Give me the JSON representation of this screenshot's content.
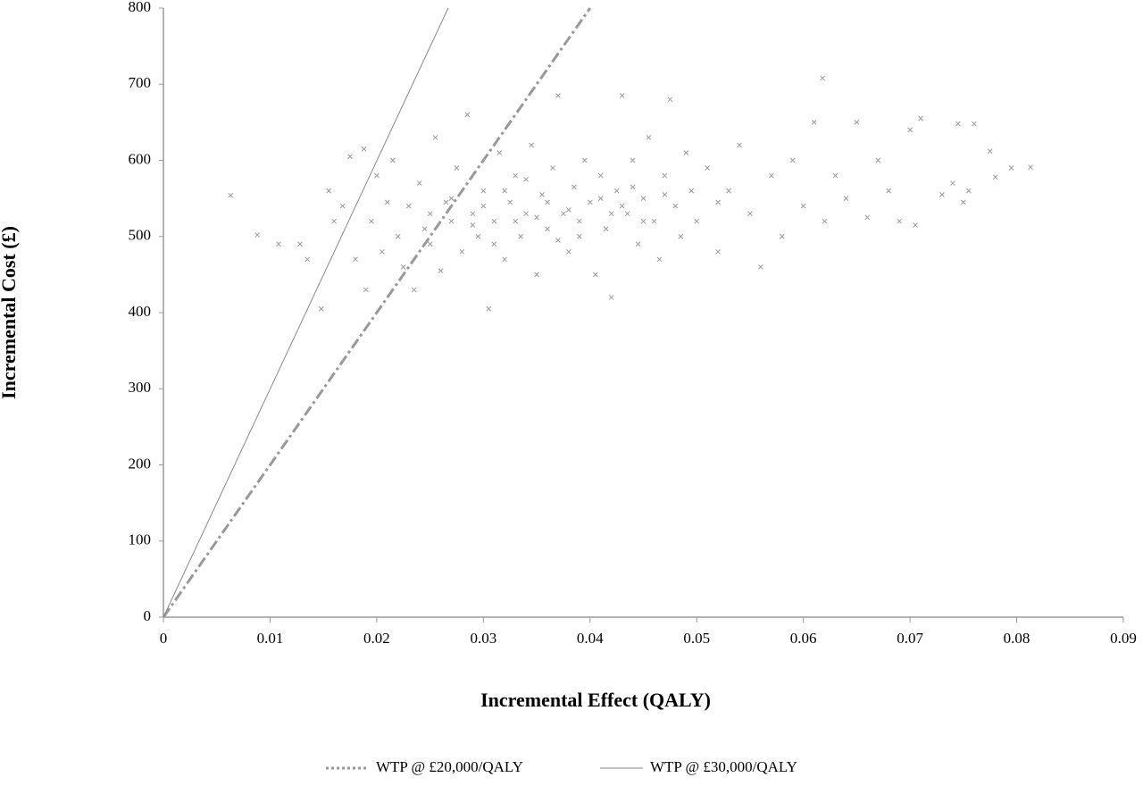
{
  "chart_data": {
    "type": "scatter",
    "xlabel": "Incremental Effect (QALY)",
    "ylabel": "Incremental Cost (£)",
    "xlim": [
      0,
      0.09
    ],
    "ylim": [
      0,
      800
    ],
    "xticks": [
      0,
      0.01,
      0.02,
      0.03,
      0.04,
      0.05,
      0.06,
      0.07,
      0.08,
      0.09
    ],
    "yticks": [
      0,
      100,
      200,
      300,
      400,
      500,
      600,
      700,
      800
    ],
    "legend": "bottom",
    "series": [
      {
        "type": "scatter",
        "color": "#999999",
        "x": [
          0.0063,
          0.0088,
          0.0108,
          0.0128,
          0.0135,
          0.0148,
          0.0155,
          0.016,
          0.0168,
          0.0175,
          0.018,
          0.0188,
          0.019,
          0.0195,
          0.02,
          0.0205,
          0.021,
          0.0215,
          0.022,
          0.0225,
          0.023,
          0.0235,
          0.024,
          0.0245,
          0.025,
          0.0255,
          0.026,
          0.0265,
          0.027,
          0.0275,
          0.028,
          0.0285,
          0.029,
          0.0295,
          0.03,
          0.0305,
          0.031,
          0.0315,
          0.032,
          0.0325,
          0.033,
          0.0335,
          0.034,
          0.0345,
          0.035,
          0.0355,
          0.036,
          0.0365,
          0.037,
          0.0375,
          0.038,
          0.0385,
          0.039,
          0.0395,
          0.04,
          0.0405,
          0.041,
          0.0415,
          0.042,
          0.0425,
          0.043,
          0.0435,
          0.044,
          0.0445,
          0.045,
          0.0455,
          0.046,
          0.0465,
          0.047,
          0.0475,
          0.048,
          0.0485,
          0.049,
          0.0495,
          0.05,
          0.051,
          0.052,
          0.053,
          0.054,
          0.055,
          0.056,
          0.057,
          0.058,
          0.059,
          0.06,
          0.061,
          0.0618,
          0.062,
          0.063,
          0.064,
          0.065,
          0.066,
          0.067,
          0.068,
          0.069,
          0.07,
          0.0705,
          0.071,
          0.073,
          0.074,
          0.0745,
          0.075,
          0.0755,
          0.076,
          0.0775,
          0.078,
          0.0795,
          0.0813,
          0.03,
          0.033,
          0.036,
          0.038,
          0.041,
          0.035,
          0.032,
          0.039,
          0.043,
          0.045,
          0.027,
          0.025,
          0.047,
          0.052,
          0.034,
          0.037,
          0.029,
          0.044,
          0.031,
          0.042
        ],
        "values": [
          554,
          502,
          490,
          490,
          470,
          405,
          560,
          520,
          540,
          605,
          470,
          615,
          430,
          520,
          580,
          480,
          545,
          600,
          500,
          460,
          540,
          430,
          570,
          510,
          490,
          630,
          455,
          545,
          520,
          590,
          480,
          660,
          530,
          500,
          560,
          405,
          520,
          610,
          470,
          545,
          580,
          500,
          530,
          620,
          450,
          555,
          510,
          590,
          685,
          530,
          480,
          565,
          520,
          600,
          545,
          450,
          580,
          510,
          420,
          560,
          685,
          530,
          600,
          490,
          550,
          630,
          520,
          470,
          580,
          680,
          540,
          500,
          610,
          560,
          520,
          590,
          480,
          560,
          620,
          530,
          460,
          580,
          500,
          600,
          540,
          650,
          708,
          520,
          580,
          550,
          650,
          525,
          600,
          560,
          520,
          640,
          515,
          655,
          555,
          570,
          648,
          545,
          560,
          648,
          612,
          578,
          590,
          591,
          540,
          520,
          545,
          535,
          550,
          525,
          560,
          500,
          540,
          520,
          550,
          530,
          555,
          545,
          575,
          495,
          515,
          565,
          490,
          530
        ]
      },
      {
        "type": "line",
        "name": "WTP @ £20,000/QALY",
        "color": "#999999",
        "style": "dashdot",
        "x": [
          0,
          0.04
        ],
        "values": [
          0,
          800
        ]
      },
      {
        "type": "line",
        "name": "WTP @ £30,000/QALY",
        "color": "#888888",
        "style": "solid",
        "x": [
          0,
          0.0267
        ],
        "values": [
          0,
          800
        ]
      }
    ]
  }
}
